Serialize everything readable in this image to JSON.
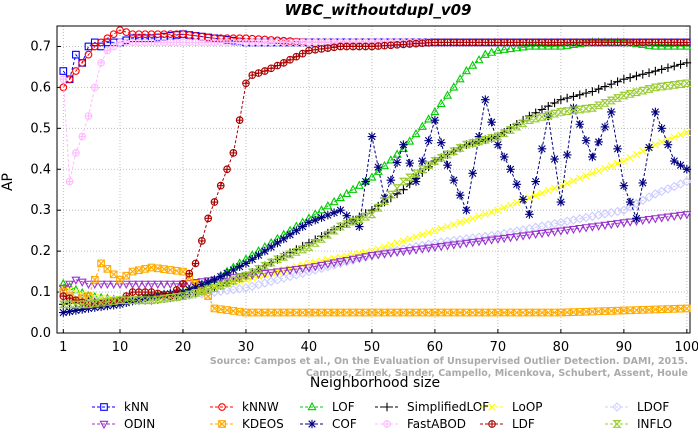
{
  "chart_data": {
    "type": "line",
    "title": "WBC_withoutdupl_v09",
    "xlabel": "Neighborhood size",
    "ylabel": "AP",
    "xlim": [
      0,
      100.5
    ],
    "ylim": [
      0,
      0.75
    ],
    "xticks": [
      1,
      10,
      20,
      30,
      40,
      50,
      60,
      70,
      80,
      90,
      100
    ],
    "yticks": [
      0.0,
      0.1,
      0.2,
      0.3,
      0.4,
      0.5,
      0.6,
      0.7
    ],
    "grid": true,
    "legend_position": "bottom",
    "watermark": "Source: Campos et al., On the Evaluation of Unsupervised Outlier Detection. DAMI, 2015.\nCampos, Zimek, Sander, Campello, Micenkova, Schubert, Assent, Houle",
    "series": [
      {
        "name": "kNN",
        "color": "#0000ff",
        "marker": "square",
        "points": [
          [
            1,
            0.64
          ],
          [
            2,
            0.62
          ],
          [
            3,
            0.68
          ],
          [
            4,
            0.66
          ],
          [
            5,
            0.7
          ],
          [
            6,
            0.71
          ],
          [
            7,
            0.7
          ],
          [
            8,
            0.71
          ],
          [
            10,
            0.71
          ],
          [
            12,
            0.72
          ],
          [
            15,
            0.72
          ],
          [
            20,
            0.73
          ],
          [
            25,
            0.72
          ],
          [
            30,
            0.71
          ],
          [
            40,
            0.71
          ],
          [
            50,
            0.71
          ],
          [
            60,
            0.71
          ],
          [
            70,
            0.71
          ],
          [
            80,
            0.71
          ],
          [
            90,
            0.71
          ],
          [
            100,
            0.71
          ]
        ]
      },
      {
        "name": "kNNW",
        "color": "#ff0000",
        "marker": "circle",
        "points": [
          [
            1,
            0.6
          ],
          [
            2,
            0.62
          ],
          [
            3,
            0.64
          ],
          [
            4,
            0.66
          ],
          [
            5,
            0.68
          ],
          [
            6,
            0.7
          ],
          [
            7,
            0.71
          ],
          [
            8,
            0.72
          ],
          [
            10,
            0.74
          ],
          [
            12,
            0.73
          ],
          [
            15,
            0.73
          ],
          [
            20,
            0.73
          ],
          [
            25,
            0.72
          ],
          [
            30,
            0.72
          ],
          [
            40,
            0.71
          ],
          [
            50,
            0.71
          ],
          [
            60,
            0.71
          ],
          [
            70,
            0.71
          ],
          [
            80,
            0.71
          ],
          [
            90,
            0.71
          ],
          [
            100,
            0.71
          ]
        ]
      },
      {
        "name": "LOF",
        "color": "#00cc00",
        "marker": "triangle-up",
        "points": [
          [
            1,
            0.12
          ],
          [
            5,
            0.09
          ],
          [
            10,
            0.08
          ],
          [
            15,
            0.09
          ],
          [
            20,
            0.1
          ],
          [
            25,
            0.13
          ],
          [
            30,
            0.18
          ],
          [
            35,
            0.23
          ],
          [
            40,
            0.28
          ],
          [
            45,
            0.33
          ],
          [
            50,
            0.38
          ],
          [
            55,
            0.45
          ],
          [
            60,
            0.54
          ],
          [
            62,
            0.58
          ],
          [
            65,
            0.64
          ],
          [
            68,
            0.68
          ],
          [
            70,
            0.69
          ],
          [
            75,
            0.7
          ],
          [
            80,
            0.7
          ],
          [
            85,
            0.71
          ],
          [
            90,
            0.71
          ],
          [
            95,
            0.7
          ],
          [
            100,
            0.7
          ]
        ]
      },
      {
        "name": "SimplifiedLOF",
        "color": "#000000",
        "marker": "plus",
        "points": [
          [
            1,
            0.07
          ],
          [
            5,
            0.08
          ],
          [
            10,
            0.08
          ],
          [
            15,
            0.08
          ],
          [
            20,
            0.09
          ],
          [
            25,
            0.11
          ],
          [
            30,
            0.14
          ],
          [
            35,
            0.18
          ],
          [
            40,
            0.22
          ],
          [
            45,
            0.26
          ],
          [
            50,
            0.3
          ],
          [
            55,
            0.35
          ],
          [
            60,
            0.42
          ],
          [
            65,
            0.46
          ],
          [
            70,
            0.48
          ],
          [
            75,
            0.53
          ],
          [
            80,
            0.57
          ],
          [
            85,
            0.59
          ],
          [
            90,
            0.62
          ],
          [
            95,
            0.64
          ],
          [
            100,
            0.66
          ]
        ]
      },
      {
        "name": "LoOP",
        "color": "#ffff00",
        "marker": "x",
        "points": [
          [
            1,
            0.11
          ],
          [
            5,
            0.09
          ],
          [
            10,
            0.08
          ],
          [
            15,
            0.08
          ],
          [
            20,
            0.1
          ],
          [
            30,
            0.13
          ],
          [
            40,
            0.17
          ],
          [
            50,
            0.2
          ],
          [
            60,
            0.25
          ],
          [
            70,
            0.3
          ],
          [
            80,
            0.36
          ],
          [
            85,
            0.39
          ],
          [
            90,
            0.42
          ],
          [
            95,
            0.46
          ],
          [
            100,
            0.49
          ]
        ]
      },
      {
        "name": "LDOF",
        "color": "#ccccff",
        "marker": "diamond",
        "points": [
          [
            1,
            0.1
          ],
          [
            5,
            0.08
          ],
          [
            10,
            0.08
          ],
          [
            20,
            0.09
          ],
          [
            30,
            0.11
          ],
          [
            40,
            0.15
          ],
          [
            50,
            0.19
          ],
          [
            60,
            0.22
          ],
          [
            70,
            0.24
          ],
          [
            80,
            0.27
          ],
          [
            90,
            0.3
          ],
          [
            95,
            0.34
          ],
          [
            100,
            0.37
          ]
        ]
      },
      {
        "name": "ODIN",
        "color": "#9933cc",
        "marker": "triangle-down",
        "points": [
          [
            1,
            0.11
          ],
          [
            3,
            0.13
          ],
          [
            5,
            0.12
          ],
          [
            10,
            0.12
          ],
          [
            15,
            0.12
          ],
          [
            20,
            0.12
          ],
          [
            25,
            0.13
          ],
          [
            30,
            0.14
          ],
          [
            40,
            0.16
          ],
          [
            50,
            0.19
          ],
          [
            60,
            0.21
          ],
          [
            70,
            0.23
          ],
          [
            80,
            0.25
          ],
          [
            90,
            0.27
          ],
          [
            100,
            0.29
          ]
        ]
      },
      {
        "name": "KDEOS",
        "color": "#ffaa00",
        "marker": "square-x",
        "points": [
          [
            1,
            0.1
          ],
          [
            3,
            0.08
          ],
          [
            5,
            0.09
          ],
          [
            7,
            0.17
          ],
          [
            10,
            0.13
          ],
          [
            12,
            0.15
          ],
          [
            15,
            0.16
          ],
          [
            20,
            0.15
          ],
          [
            24,
            0.09
          ],
          [
            25,
            0.06
          ],
          [
            30,
            0.05
          ],
          [
            40,
            0.05
          ],
          [
            50,
            0.05
          ],
          [
            60,
            0.05
          ],
          [
            70,
            0.05
          ],
          [
            80,
            0.05
          ],
          [
            90,
            0.055
          ],
          [
            100,
            0.06
          ]
        ]
      },
      {
        "name": "COF",
        "color": "#000080",
        "marker": "asterisk",
        "points": [
          [
            1,
            0.05
          ],
          [
            5,
            0.06
          ],
          [
            10,
            0.07
          ],
          [
            15,
            0.09
          ],
          [
            20,
            0.1
          ],
          [
            25,
            0.13
          ],
          [
            30,
            0.17
          ],
          [
            35,
            0.22
          ],
          [
            40,
            0.27
          ],
          [
            45,
            0.3
          ],
          [
            48,
            0.26
          ],
          [
            50,
            0.48
          ],
          [
            52,
            0.33
          ],
          [
            55,
            0.46
          ],
          [
            57,
            0.37
          ],
          [
            60,
            0.52
          ],
          [
            62,
            0.41
          ],
          [
            65,
            0.3
          ],
          [
            68,
            0.57
          ],
          [
            70,
            0.46
          ],
          [
            72,
            0.4
          ],
          [
            75,
            0.29
          ],
          [
            78,
            0.53
          ],
          [
            80,
            0.32
          ],
          [
            82,
            0.55
          ],
          [
            85,
            0.43
          ],
          [
            88,
            0.54
          ],
          [
            90,
            0.36
          ],
          [
            92,
            0.28
          ],
          [
            95,
            0.54
          ],
          [
            98,
            0.42
          ],
          [
            100,
            0.4
          ]
        ]
      },
      {
        "name": "FastABOD",
        "color": "#ffbbff",
        "marker": "plus-circle",
        "points": [
          [
            1,
            0.62
          ],
          [
            2,
            0.37
          ],
          [
            3,
            0.44
          ],
          [
            4,
            0.48
          ],
          [
            5,
            0.53
          ],
          [
            6,
            0.6
          ],
          [
            7,
            0.66
          ],
          [
            8,
            0.69
          ],
          [
            10,
            0.71
          ],
          [
            15,
            0.71
          ],
          [
            20,
            0.71
          ],
          [
            30,
            0.71
          ],
          [
            40,
            0.71
          ],
          [
            60,
            0.71
          ],
          [
            80,
            0.71
          ],
          [
            100,
            0.71
          ]
        ]
      },
      {
        "name": "LDF",
        "color": "#aa0000",
        "marker": "circle-plus",
        "points": [
          [
            1,
            0.09
          ],
          [
            5,
            0.07
          ],
          [
            10,
            0.08
          ],
          [
            12,
            0.1
          ],
          [
            15,
            0.1
          ],
          [
            18,
            0.09
          ],
          [
            20,
            0.12
          ],
          [
            22,
            0.17
          ],
          [
            24,
            0.28
          ],
          [
            26,
            0.36
          ],
          [
            28,
            0.44
          ],
          [
            29,
            0.52
          ],
          [
            30,
            0.61
          ],
          [
            31,
            0.63
          ],
          [
            33,
            0.64
          ],
          [
            36,
            0.66
          ],
          [
            40,
            0.69
          ],
          [
            45,
            0.7
          ],
          [
            50,
            0.7
          ],
          [
            60,
            0.71
          ],
          [
            70,
            0.71
          ],
          [
            80,
            0.71
          ],
          [
            90,
            0.71
          ],
          [
            100,
            0.71
          ]
        ]
      },
      {
        "name": "INFLO",
        "color": "#99cc33",
        "marker": "hourglass",
        "points": [
          [
            1,
            0.07
          ],
          [
            5,
            0.07
          ],
          [
            10,
            0.08
          ],
          [
            15,
            0.08
          ],
          [
            20,
            0.09
          ],
          [
            25,
            0.11
          ],
          [
            30,
            0.14
          ],
          [
            35,
            0.18
          ],
          [
            40,
            0.21
          ],
          [
            45,
            0.26
          ],
          [
            50,
            0.29
          ],
          [
            55,
            0.37
          ],
          [
            60,
            0.42
          ],
          [
            65,
            0.46
          ],
          [
            70,
            0.48
          ],
          [
            75,
            0.52
          ],
          [
            80,
            0.54
          ],
          [
            85,
            0.55
          ],
          [
            90,
            0.58
          ],
          [
            95,
            0.6
          ],
          [
            100,
            0.61
          ]
        ]
      }
    ]
  }
}
